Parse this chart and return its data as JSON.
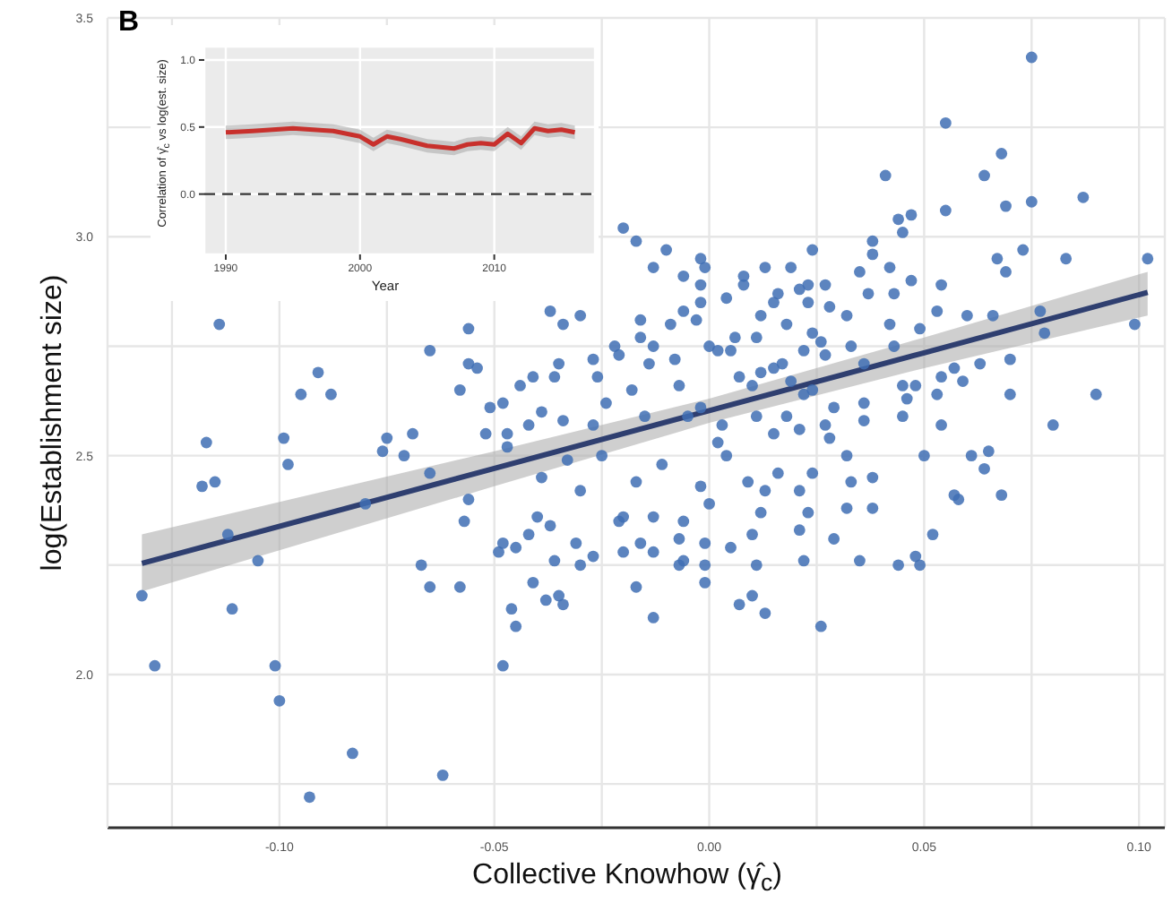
{
  "chart_data": [
    {
      "type": "scatter",
      "xlabel": "Collective Knowhow (γ̂$_{c}$)",
      "ylabel": "log(Establishment size)",
      "annotations": [
        "B"
      ],
      "grid": true,
      "xlim": [
        -0.14,
        0.106
      ],
      "xticks": [
        {
          "value": -0.125,
          "label": null
        },
        {
          "value": -0.1,
          "label": "-0.10"
        },
        {
          "value": -0.075,
          "label": null
        },
        {
          "value": -0.05,
          "label": "-0.05"
        },
        {
          "value": -0.025,
          "label": null
        },
        {
          "value": 0,
          "label": "0.00"
        },
        {
          "value": 0.025,
          "label": null
        },
        {
          "value": 0.05,
          "label": "0.05"
        },
        {
          "value": 0.075,
          "label": null
        },
        {
          "value": 0.1,
          "label": "0.10"
        }
      ],
      "ylim": [
        1.65,
        3.5
      ],
      "yticks": [
        {
          "value": 1.75,
          "label": null
        },
        {
          "value": 2,
          "label": "2.0"
        },
        {
          "value": 2.25,
          "label": null
        },
        {
          "value": 2.5,
          "label": "2.5"
        },
        {
          "value": 2.75,
          "label": null
        },
        {
          "value": 3,
          "label": "3.0"
        },
        {
          "value": 3.25,
          "label": null
        },
        {
          "value": 3.5,
          "label": "3.5"
        }
      ],
      "series": [
        {
          "color": "#3f6fb4",
          "marker": "circle",
          "x": [
            -0.132,
            -0.129,
            -0.114,
            -0.117,
            -0.115,
            -0.118,
            -0.111,
            -0.105,
            -0.101,
            -0.1,
            -0.093,
            -0.083,
            -0.062,
            -0.048,
            -0.099,
            -0.098,
            -0.095,
            -0.091,
            -0.088,
            -0.112,
            -0.076,
            -0.075,
            -0.071,
            -0.069,
            -0.065,
            -0.065,
            -0.056,
            -0.056,
            -0.054,
            -0.058,
            -0.051,
            -0.048,
            -0.044,
            -0.041,
            -0.052,
            -0.047,
            -0.042,
            -0.039,
            -0.036,
            -0.035,
            -0.034,
            -0.047,
            -0.039,
            -0.033,
            -0.03,
            -0.027,
            -0.026,
            -0.024,
            -0.027,
            -0.025,
            -0.022,
            -0.021,
            -0.02,
            -0.017,
            -0.03,
            -0.056,
            -0.057,
            -0.04,
            -0.037,
            -0.08,
            -0.021,
            -0.034,
            -0.037,
            -0.067,
            -0.065,
            -0.058,
            -0.049,
            -0.048,
            -0.045,
            -0.042,
            -0.046,
            -0.045,
            -0.041,
            -0.038,
            -0.035,
            -0.034,
            -0.036,
            -0.031,
            -0.03,
            -0.027,
            -0.02,
            -0.02,
            -0.017,
            -0.016,
            -0.013,
            0.007,
            0.01,
            0.013,
            0.026,
            -0.001,
            -0.001,
            -0.007,
            -0.006,
            0.011,
            0.022,
            0.035,
            0.044,
            0.048,
            0.049,
            0.052,
            0.05,
            0.061,
            0.065,
            0.064,
            0.057,
            0.058,
            0.068,
            0.029,
            0.021,
            0.01,
            0.005,
            -0.001,
            -0.007,
            -0.013,
            -0.013,
            -0.006,
            -0.002,
            0,
            0.004,
            0.009,
            0.013,
            0.012,
            0.016,
            0.021,
            0.023,
            0.024,
            0.032,
            0.033,
            0.032,
            0.038,
            0.038,
            0.002,
            0.028,
            -0.011,
            -0.017,
            0.075,
            0.055,
            0.068,
            0.064,
            0.041,
            0.087,
            0.075,
            0.069,
            0.055,
            0.044,
            0.047,
            0.045,
            0.038,
            0.038,
            0.024,
            0.067,
            0.073,
            0.083,
            0.102,
            0.069,
            0.099,
            0.09,
            0.08,
            0.07,
            0.07,
            0.063,
            0.059,
            0.057,
            0.054,
            0.053,
            0.054,
            0.045,
            0.046,
            0.045,
            0.048,
            0.053,
            0.054,
            0.06,
            0.066,
            0.078,
            0.077,
            0.049,
            0.047,
            0.043,
            0.037,
            0.042,
            0.035,
            0.042,
            0.033,
            0.043,
            0.036,
            0.036,
            0.036,
            0.029,
            0.027,
            0.032,
            0.028,
            0.027,
            0.023,
            0.021,
            0.024,
            0.023,
            0.019,
            0.013,
            0.008,
            0.008,
            0.004,
            -0.002,
            -0.001,
            -0.006,
            -0.002,
            -0.002,
            -0.006,
            -0.003,
            -0.01,
            -0.013,
            -0.016,
            -0.016,
            -0.009,
            0,
            0.002,
            0.005,
            0.011,
            0.006,
            0.015,
            0.016,
            0.012,
            0.018,
            0.015,
            0.017,
            0.022,
            0.027,
            0.026,
            0.024,
            0.022,
            0.019,
            0.012,
            0.01,
            0.007,
            0.011,
            0.003,
            -0.002,
            -0.005,
            -0.007,
            -0.008,
            -0.014,
            -0.013,
            -0.018,
            -0.015,
            0.018,
            0.021,
            0.015
          ],
          "values": [
            2.18,
            2.02,
            2.8,
            2.53,
            2.44,
            2.43,
            2.15,
            2.26,
            2.02,
            1.94,
            1.72,
            1.82,
            1.77,
            2.02,
            2.54,
            2.48,
            2.64,
            2.69,
            2.64,
            2.32,
            2.51,
            2.54,
            2.5,
            2.55,
            2.74,
            2.46,
            2.79,
            2.71,
            2.7,
            2.65,
            2.61,
            2.62,
            2.66,
            2.68,
            2.55,
            2.55,
            2.57,
            2.6,
            2.68,
            2.71,
            2.58,
            2.52,
            2.45,
            2.49,
            2.82,
            2.72,
            2.68,
            2.62,
            2.57,
            2.5,
            2.75,
            2.73,
            3.02,
            2.99,
            2.42,
            2.4,
            2.35,
            2.36,
            2.34,
            2.39,
            2.35,
            2.8,
            2.83,
            2.25,
            2.2,
            2.2,
            2.28,
            2.3,
            2.29,
            2.32,
            2.15,
            2.11,
            2.21,
            2.17,
            2.18,
            2.16,
            2.26,
            2.3,
            2.25,
            2.27,
            2.36,
            2.28,
            2.2,
            2.3,
            2.13,
            2.16,
            2.18,
            2.14,
            2.11,
            2.21,
            2.25,
            2.25,
            2.26,
            2.25,
            2.26,
            2.26,
            2.25,
            2.27,
            2.25,
            2.32,
            2.5,
            2.5,
            2.51,
            2.47,
            2.41,
            2.4,
            2.41,
            2.31,
            2.33,
            2.32,
            2.29,
            2.3,
            2.31,
            2.28,
            2.36,
            2.35,
            2.43,
            2.39,
            2.5,
            2.44,
            2.42,
            2.37,
            2.46,
            2.42,
            2.37,
            2.46,
            2.5,
            2.44,
            2.38,
            2.45,
            2.38,
            2.53,
            2.54,
            2.48,
            2.44,
            3.41,
            3.26,
            3.19,
            3.14,
            3.14,
            3.09,
            3.08,
            3.07,
            3.06,
            3.04,
            3.05,
            3.01,
            2.99,
            2.96,
            2.97,
            2.95,
            2.97,
            2.95,
            2.95,
            2.92,
            2.8,
            2.64,
            2.57,
            2.64,
            2.72,
            2.71,
            2.67,
            2.7,
            2.68,
            2.64,
            2.57,
            2.59,
            2.63,
            2.66,
            2.66,
            2.83,
            2.89,
            2.82,
            2.82,
            2.78,
            2.83,
            2.79,
            2.9,
            2.87,
            2.87,
            2.8,
            2.92,
            2.93,
            2.75,
            2.75,
            2.71,
            2.62,
            2.58,
            2.61,
            2.57,
            2.82,
            2.84,
            2.89,
            2.89,
            2.88,
            2.78,
            2.85,
            2.93,
            2.93,
            2.91,
            2.89,
            2.86,
            2.95,
            2.93,
            2.91,
            2.89,
            2.85,
            2.83,
            2.81,
            2.97,
            2.93,
            2.81,
            2.77,
            2.8,
            2.75,
            2.74,
            2.74,
            2.77,
            2.77,
            2.85,
            2.87,
            2.82,
            2.8,
            2.7,
            2.71,
            2.74,
            2.73,
            2.76,
            2.65,
            2.64,
            2.67,
            2.69,
            2.66,
            2.68,
            2.59,
            2.57,
            2.61,
            2.59,
            2.66,
            2.72,
            2.71,
            2.75,
            2.65,
            2.59,
            2.59,
            2.56,
            2.55
          ]
        },
        {
          "type": "line",
          "color": "#2f3f70",
          "x": [
            -0.132,
            -0.05,
            0,
            0.05,
            0.102
          ],
          "values": [
            2.254,
            2.471,
            2.603,
            2.735,
            2.873
          ],
          "lower": [
            2.19,
            2.43,
            2.575,
            2.7,
            2.82
          ],
          "upper": [
            2.32,
            2.51,
            2.63,
            2.77,
            2.92
          ]
        }
      ]
    },
    {
      "type": "line",
      "xlabel": "Year",
      "ylabel": "Correlation of γ̂$_{c}$ vs log(est. size)",
      "grid": true,
      "xlim": [
        1988.4,
        2017.5
      ],
      "xticks": [
        1990,
        2000,
        2010
      ],
      "ylim": [
        -0.45,
        1.1
      ],
      "yticks": [
        {
          "value": 0,
          "label": "0.0"
        },
        {
          "value": 0.5,
          "label": "0.5"
        },
        {
          "value": 1,
          "label": "1.0"
        }
      ],
      "ref_lines": [
        {
          "axis": "y",
          "value": 0,
          "color": "#333333",
          "line_style": "dashed"
        }
      ],
      "series": [
        {
          "color": "#c8302c",
          "x": [
            1990,
            1992,
            1995,
            1998,
            2000,
            2001,
            2002,
            2003,
            2005,
            2007,
            2008,
            2009,
            2010,
            2011,
            2012,
            2013,
            2014,
            2015,
            2016
          ],
          "values": [
            0.46,
            0.47,
            0.49,
            0.47,
            0.43,
            0.37,
            0.43,
            0.41,
            0.36,
            0.34,
            0.37,
            0.38,
            0.37,
            0.45,
            0.38,
            0.49,
            0.47,
            0.48,
            0.46
          ],
          "lower": [
            0.41,
            0.42,
            0.44,
            0.42,
            0.38,
            0.32,
            0.38,
            0.36,
            0.31,
            0.29,
            0.32,
            0.33,
            0.32,
            0.4,
            0.33,
            0.44,
            0.42,
            0.43,
            0.41
          ],
          "upper": [
            0.51,
            0.52,
            0.54,
            0.52,
            0.48,
            0.42,
            0.48,
            0.46,
            0.41,
            0.39,
            0.42,
            0.43,
            0.42,
            0.5,
            0.43,
            0.54,
            0.52,
            0.53,
            0.51
          ]
        }
      ]
    }
  ]
}
